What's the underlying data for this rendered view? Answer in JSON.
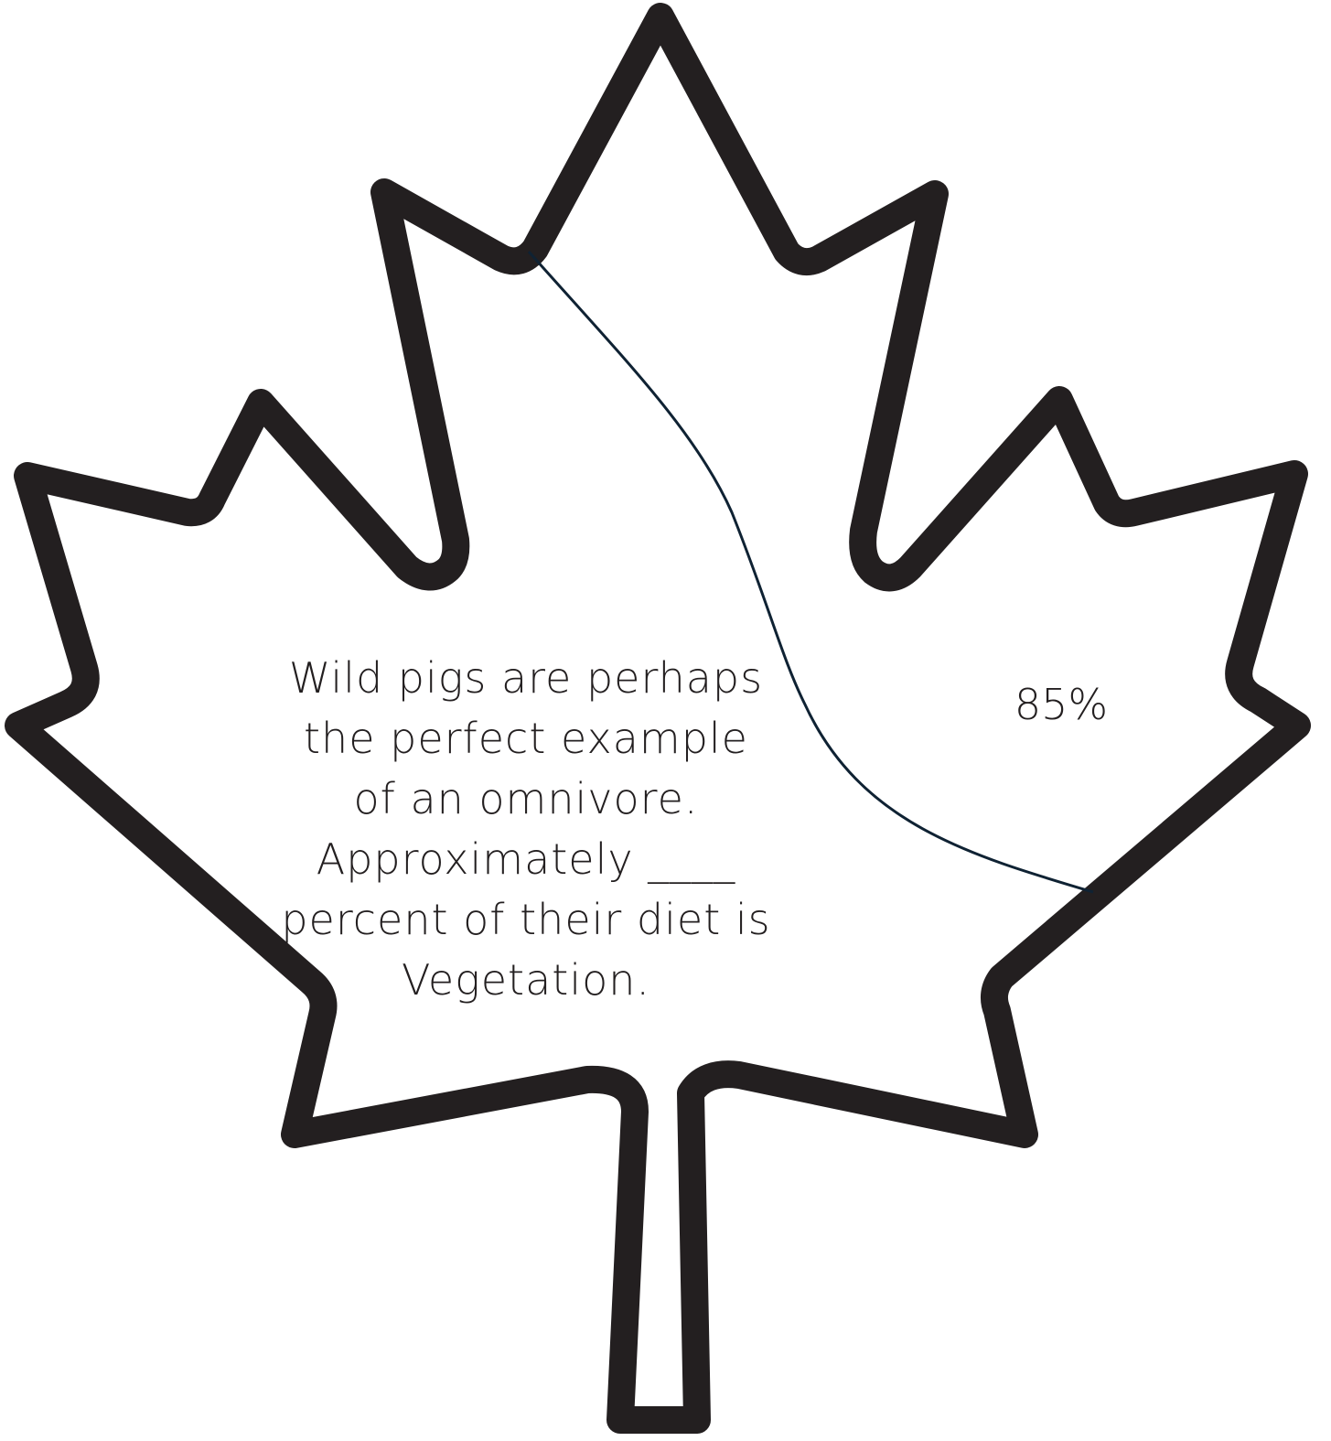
{
  "question": {
    "lines": [
      "Wild pigs are perhaps",
      "the perfect example",
      "of an omnivore.",
      "Approximately ____",
      "percent of their diet is",
      "Vegetation."
    ]
  },
  "answer": {
    "value": "85%"
  },
  "colors": {
    "outline": "#231f20",
    "divider": "#0f2233",
    "background": "#ffffff"
  },
  "icons": {
    "shape": "maple-leaf-icon"
  }
}
